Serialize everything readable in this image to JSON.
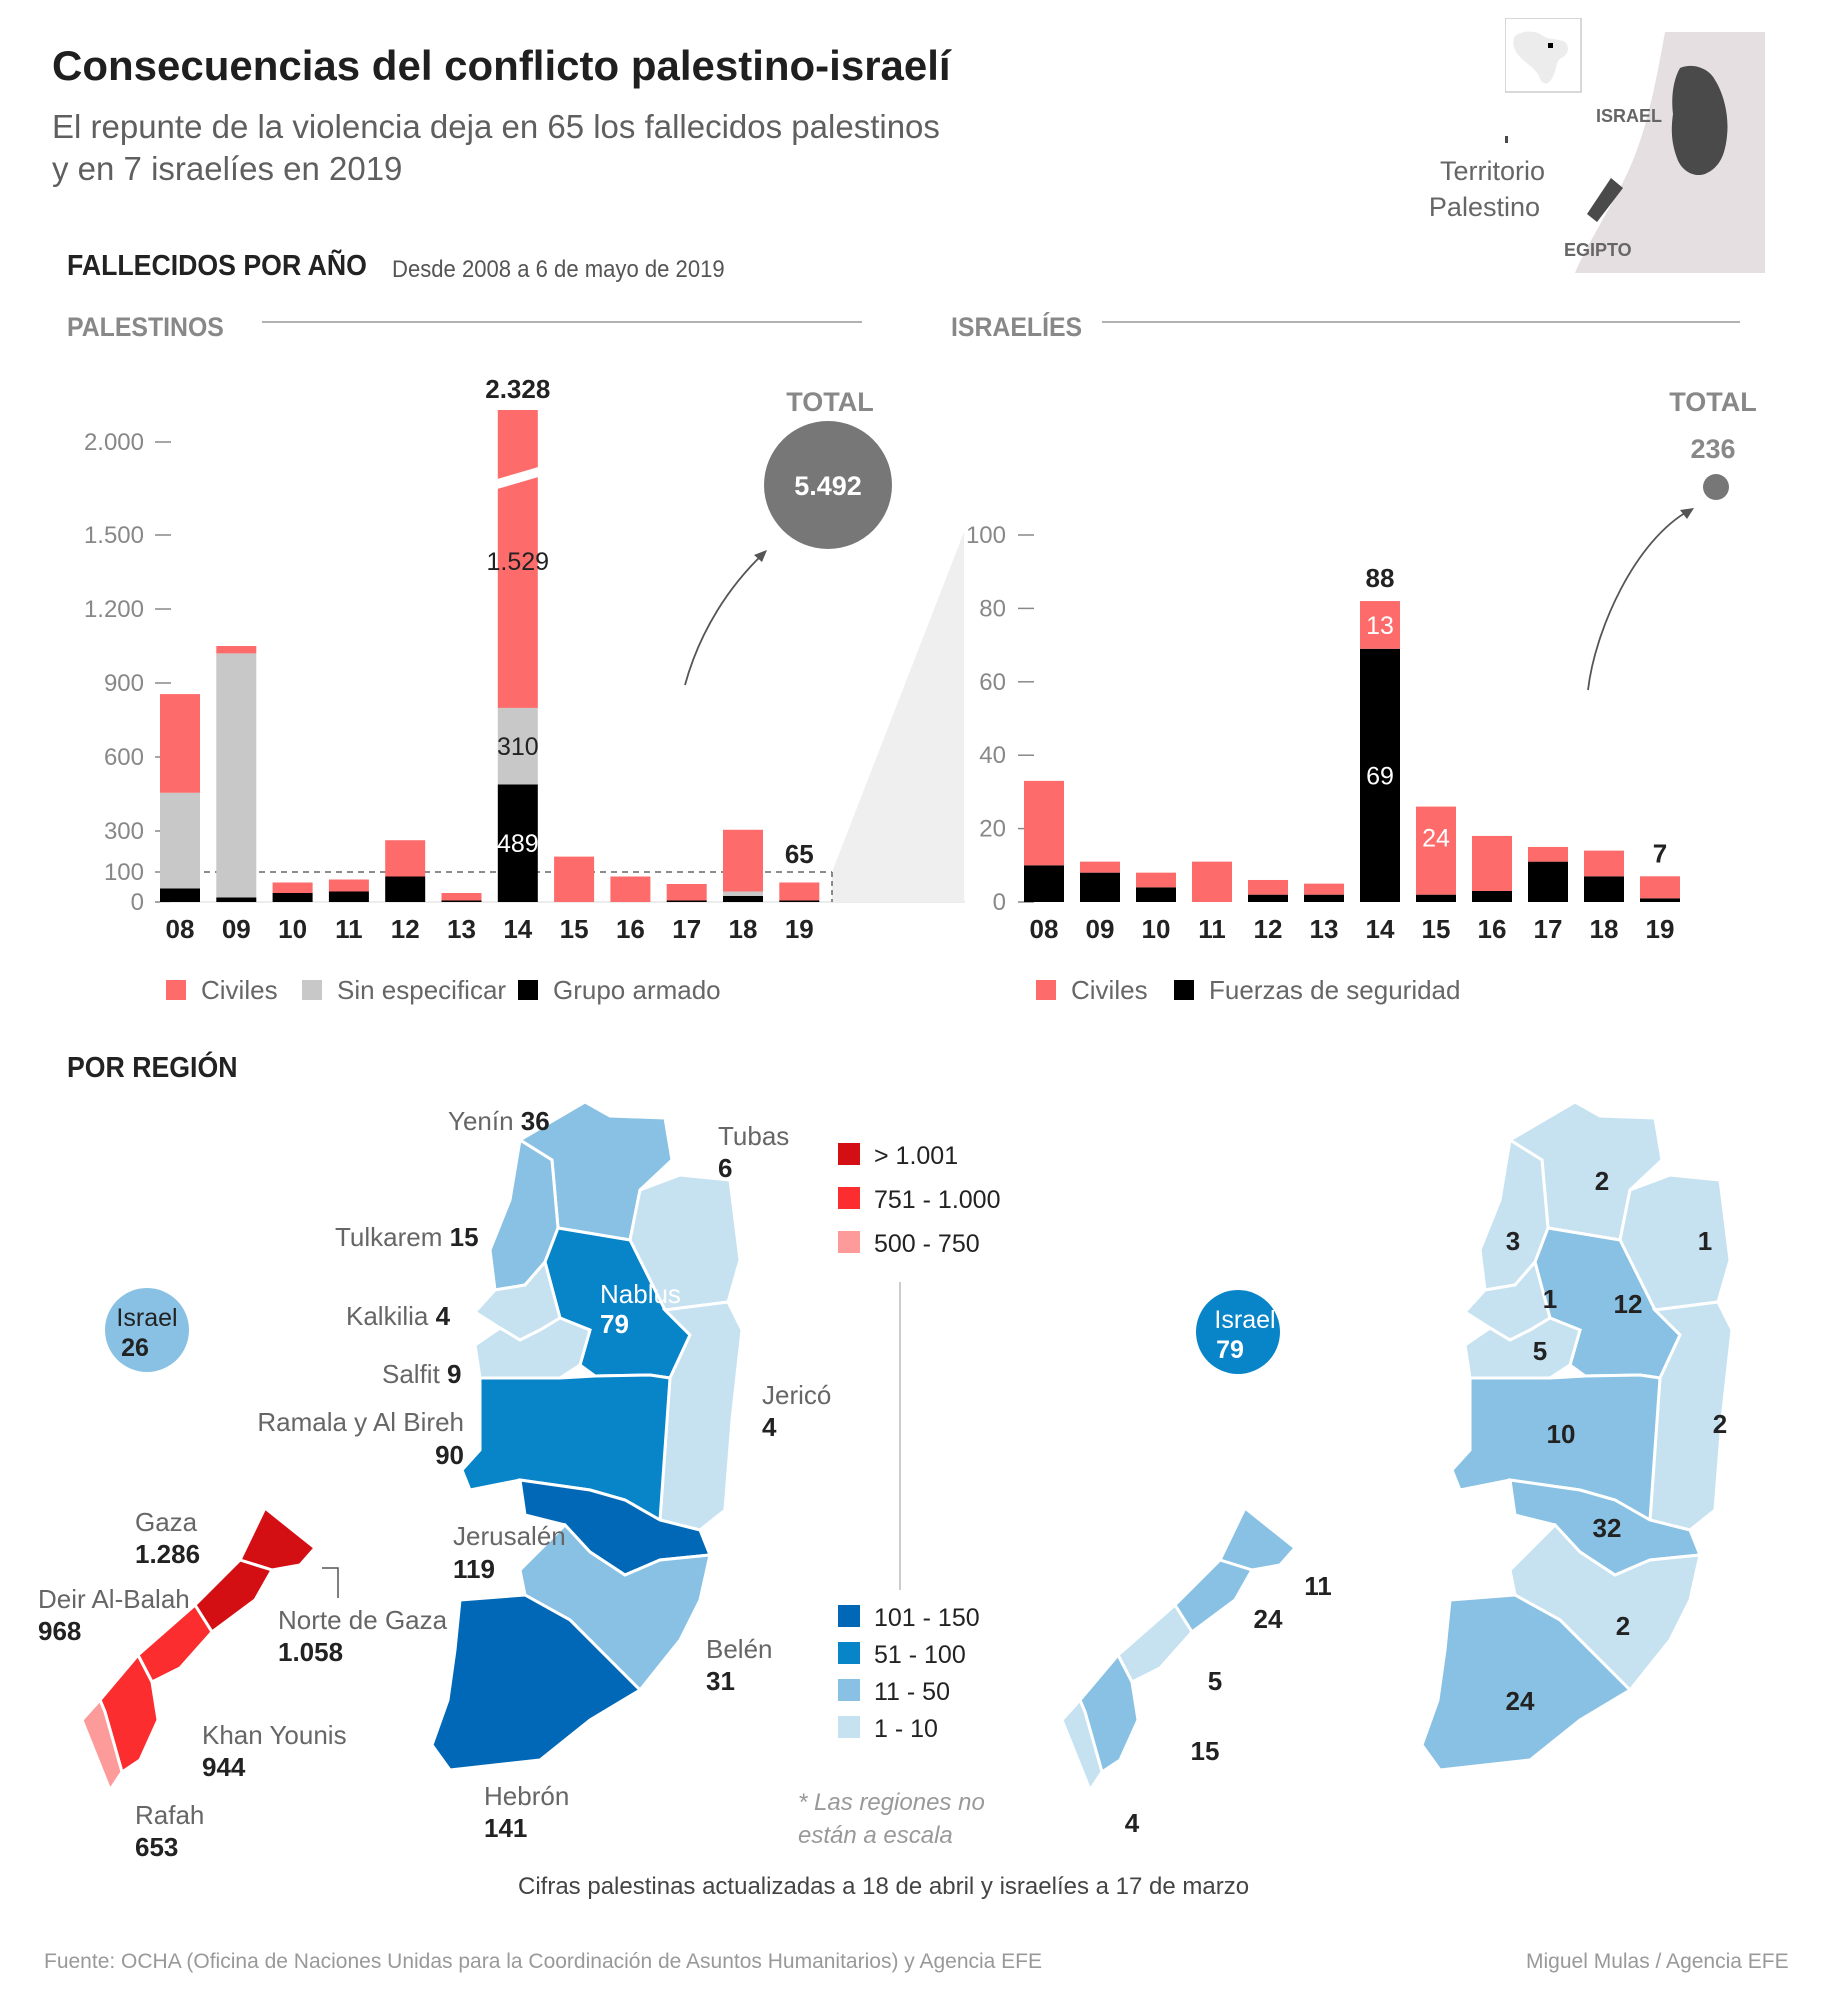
{
  "header": {
    "title": "Consecuencias del conflicto palestino-israelí",
    "subtitle_line1": "El repunte de la violencia deja en 65 los fallecidos palestinos",
    "subtitle_line2": "y en 7 israelíes en 2019"
  },
  "inset_map": {
    "legend_line1": "Territorio",
    "legend_line2": "Palestino",
    "label_israel": "ISRAEL",
    "label_egypt": "EGIPTO",
    "colors": {
      "territory": "#4a4a4a",
      "land": "#e5dfe1",
      "sea": "#ffffff"
    }
  },
  "section_years": {
    "title": "FALLECIDOS POR AÑO",
    "note": "Desde 2008 a 6 de mayo de 2019"
  },
  "section_region": {
    "title": "POR REGIÓN"
  },
  "footnote": "Cifras palestinas actualizadas a 18 de abril y israelíes a 17 de marzo",
  "source": "Fuente: OCHA (Oficina de Naciones Unidas para la Coordinación de Asuntos Humanitarios) y Agencia EFE",
  "credit": "Miguel Mulas / Agencia EFE",
  "chart_data": [
    {
      "type": "bar",
      "stacked": true,
      "panel_title": "PALESTINOS",
      "categories": [
        "08",
        "09",
        "10",
        "11",
        "12",
        "13",
        "14",
        "15",
        "16",
        "17",
        "18",
        "19"
      ],
      "series": [
        {
          "name": "Grupo armado",
          "color": "#000000",
          "values": [
            45,
            15,
            30,
            35,
            85,
            5,
            489,
            0,
            0,
            5,
            20,
            5
          ]
        },
        {
          "name": "Sin especificar",
          "color": "#c8c8c8",
          "values": [
            410,
            1005,
            0,
            0,
            0,
            0,
            310,
            0,
            0,
            0,
            15,
            0
          ]
        },
        {
          "name": "Civiles",
          "color": "#fe6b6b",
          "values": [
            400,
            30,
            35,
            40,
            170,
            25,
            1529,
            175,
            85,
            55,
            270,
            60
          ]
        }
      ],
      "data_labels": [
        {
          "category": "14",
          "text": "2.328"
        },
        {
          "category": "19",
          "text": "65"
        }
      ],
      "segment_labels": [
        {
          "category": "14",
          "series": "Civiles",
          "text": "1.529"
        },
        {
          "category": "14",
          "series": "Sin especificar",
          "text": "310"
        },
        {
          "category": "14",
          "series": "Grupo armado",
          "text": "489"
        }
      ],
      "y_axis": {
        "scale": "piecewise",
        "ticks": [
          0,
          100,
          300,
          600,
          900,
          1200,
          1500,
          2000
        ],
        "tick_labels": [
          "0",
          "100",
          "300",
          "600",
          "900",
          "1.200",
          "1.500",
          "2.000"
        ]
      },
      "axis_break": {
        "category": "14"
      },
      "total": {
        "label": "TOTAL",
        "value": "5.492",
        "color": "#777777"
      },
      "legend": {
        "position": "bottom-left"
      }
    },
    {
      "type": "bar",
      "stacked": true,
      "panel_title": "ISRAELÍES",
      "categories": [
        "08",
        "09",
        "10",
        "11",
        "12",
        "13",
        "14",
        "15",
        "16",
        "17",
        "18",
        "19"
      ],
      "series": [
        {
          "name": "Fuerzas de seguridad",
          "color": "#000000",
          "values": [
            10,
            8,
            4,
            0,
            2,
            2,
            69,
            2,
            3,
            11,
            7,
            1
          ]
        },
        {
          "name": "Civiles",
          "color": "#fe6b6b",
          "values": [
            23,
            3,
            4,
            11,
            4,
            3,
            13,
            24,
            15,
            4,
            7,
            6
          ]
        }
      ],
      "data_labels": [
        {
          "category": "14",
          "text": "88"
        },
        {
          "category": "19",
          "text": "7"
        }
      ],
      "segment_labels": [
        {
          "category": "14",
          "series": "Civiles",
          "text": "13"
        },
        {
          "category": "14",
          "series": "Fuerzas de seguridad",
          "text": "69"
        },
        {
          "category": "15",
          "series": "Civiles",
          "text": "24"
        }
      ],
      "y_axis": {
        "ticks": [
          0,
          20,
          40,
          60,
          80,
          100
        ],
        "tick_labels": [
          "0",
          "20",
          "40",
          "60",
          "80",
          "100"
        ],
        "ylim": [
          0,
          100
        ]
      },
      "total": {
        "label": "TOTAL",
        "value": "236",
        "color": "#777777"
      },
      "legend": {
        "position": "bottom-left"
      }
    }
  ],
  "region_legend": {
    "red": [
      {
        "label": "> 1.001",
        "color": "#d40f14"
      },
      {
        "label": "751 - 1.000",
        "color": "#fb2d2f"
      },
      {
        "label": "500 - 750",
        "color": "#fd9a9a"
      }
    ],
    "blue": [
      {
        "label": "101 - 150",
        "color": "#0068b7"
      },
      {
        "label": "51 - 100",
        "color": "#0884c9"
      },
      {
        "label": "11 - 50",
        "color": "#88c1e3"
      },
      {
        "label": "1 - 10",
        "color": "#c6e2f1"
      }
    ],
    "note_line1": "* Las regiones no",
    "note_line2": "están a escala"
  },
  "regions_palestinian": {
    "west_bank": [
      {
        "name": "Yenín",
        "value": "36"
      },
      {
        "name": "Tubas",
        "value": "6"
      },
      {
        "name": "Tulkarem",
        "value": "15"
      },
      {
        "name": "Nablus",
        "value": "79"
      },
      {
        "name": "Kalkilia",
        "value": "4"
      },
      {
        "name": "Salfit",
        "value": "9"
      },
      {
        "name": "Jericó",
        "value": "4"
      },
      {
        "name": "Ramala y Al Bireh",
        "value": "90"
      },
      {
        "name": "Jerusalén",
        "value": "119"
      },
      {
        "name": "Belén",
        "value": "31"
      },
      {
        "name": "Hebrón",
        "value": "141"
      }
    ],
    "gaza": [
      {
        "name": "Gaza",
        "value": "1.286"
      },
      {
        "name": "Deir Al-Balah",
        "value": "968"
      },
      {
        "name": "Norte de Gaza",
        "value": "1.058"
      },
      {
        "name": "Khan Younis",
        "value": "944"
      },
      {
        "name": "Rafah",
        "value": "653"
      }
    ],
    "israel": {
      "name": "Israel",
      "value": "26"
    }
  },
  "regions_israeli": {
    "west_bank": [
      "2",
      "3",
      "1",
      "1",
      "12",
      "5",
      "10",
      "2",
      "32",
      "2",
      "24"
    ],
    "gaza": [
      "11",
      "24",
      "5",
      "15",
      "4"
    ],
    "israel": {
      "name": "Israel",
      "value": "79"
    }
  }
}
